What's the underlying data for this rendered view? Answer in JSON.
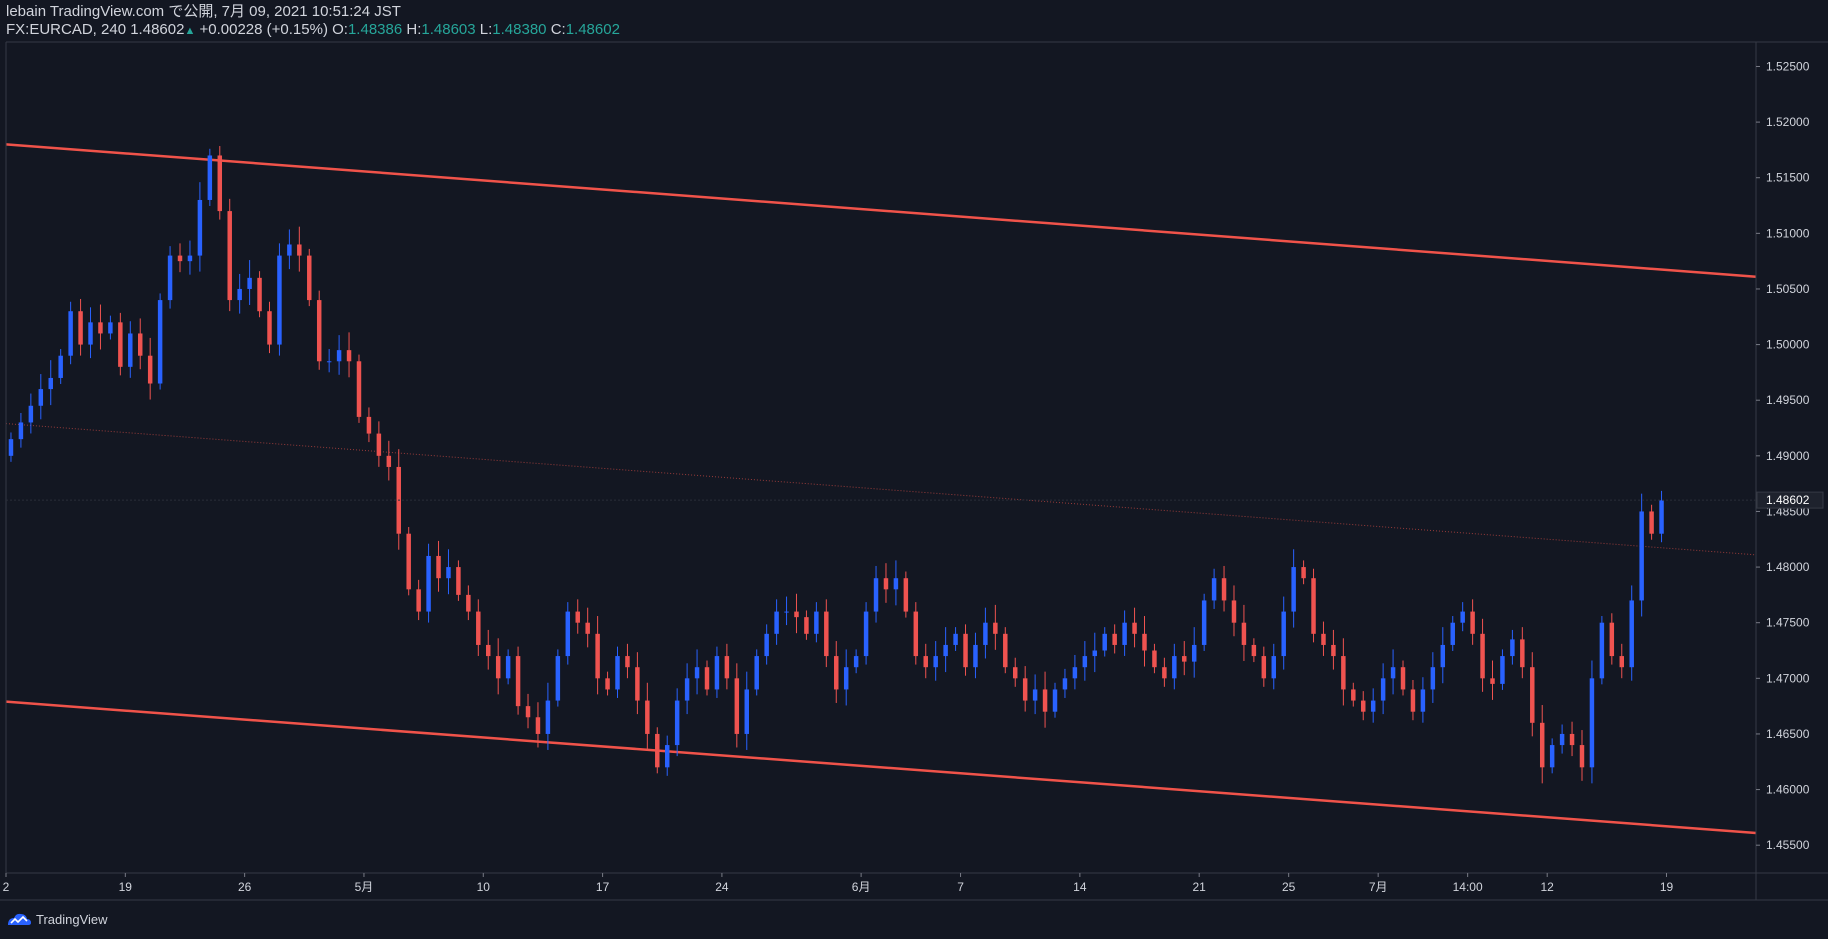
{
  "header": {
    "line1": "lebain TradingView.com で公開, 7月 09, 2021 10:51:24 JST",
    "symbol": "FX:EURCAD, 240",
    "last": "1.48602",
    "change": "+0.00228 (+0.15%)",
    "o_label": "O:",
    "o_val": "1.48386",
    "h_label": "H:",
    "h_val": "1.48603",
    "l_label": "L:",
    "l_val": "1.48380",
    "c_label": "C:",
    "c_val": "1.48602"
  },
  "footer": {
    "brand": "TradingView"
  },
  "colors": {
    "bg": "#131722",
    "up": "#2962ff",
    "down": "#ef5350",
    "channel": "#f0534a",
    "text": "#d1d4dc",
    "grid": "#363a45"
  },
  "chart_data": {
    "type": "candlestick",
    "symbol": "FX:EURCAD",
    "interval": "240",
    "ylim": [
      1.4525,
      1.5272
    ],
    "y_ticks": [
      1.455,
      1.46,
      1.465,
      1.47,
      1.475,
      1.48,
      1.485,
      1.49,
      1.495,
      1.5,
      1.505,
      1.51,
      1.515,
      1.52,
      1.525
    ],
    "y_tick_labels": [
      "1.45500",
      "1.46000",
      "1.46500",
      "1.47000",
      "1.47500",
      "1.48000",
      "1.48500",
      "1.49000",
      "1.49500",
      "1.50000",
      "1.50500",
      "1.51000",
      "1.51500",
      "1.52000",
      "1.52500"
    ],
    "last_price": 1.48602,
    "last_price_label": "1.48602",
    "x_range": [
      0,
      176
    ],
    "x_ticks": [
      {
        "label": "2",
        "x": 0
      },
      {
        "label": "19",
        "x": 12
      },
      {
        "label": "26",
        "x": 24
      },
      {
        "label": "5月",
        "x": 36
      },
      {
        "label": "10",
        "x": 48
      },
      {
        "label": "17",
        "x": 60
      },
      {
        "label": "24",
        "x": 72
      },
      {
        "label": "6月",
        "x": 86
      },
      {
        "label": "7",
        "x": 96
      },
      {
        "label": "14",
        "x": 108
      },
      {
        "label": "21",
        "x": 120
      },
      {
        "label": "25",
        "x": 129
      },
      {
        "label": "7月",
        "x": 138
      },
      {
        "label": "14:00",
        "x": 147
      },
      {
        "label": "12",
        "x": 155
      },
      {
        "label": "19",
        "x": 167
      }
    ],
    "channel_lines": [
      {
        "name": "upper",
        "x1": 0,
        "y1": 1.518,
        "x2": 176,
        "y2": 1.5061,
        "style": "solid"
      },
      {
        "name": "lower",
        "x1": 0,
        "y1": 1.4679,
        "x2": 176,
        "y2": 1.4561,
        "style": "solid"
      },
      {
        "name": "mid",
        "x1": 0,
        "y1": 1.4929,
        "x2": 176,
        "y2": 1.4811,
        "style": "dotted"
      }
    ],
    "close_series": [
      1.4915,
      1.493,
      1.4945,
      1.496,
      1.497,
      1.499,
      1.503,
      1.5,
      1.502,
      1.501,
      1.502,
      1.498,
      1.501,
      1.499,
      1.4965,
      1.504,
      1.508,
      1.5075,
      1.508,
      1.513,
      1.517,
      1.512,
      1.504,
      1.505,
      1.506,
      1.503,
      1.5,
      1.508,
      1.509,
      1.508,
      1.504,
      1.4985,
      1.4985,
      1.4995,
      1.4985,
      1.4935,
      1.492,
      1.49,
      1.489,
      1.483,
      1.478,
      1.476,
      1.481,
      1.479,
      1.48,
      1.4775,
      1.476,
      1.473,
      1.472,
      1.47,
      1.472,
      1.4675,
      1.4665,
      1.465,
      1.468,
      1.472,
      1.476,
      1.475,
      1.474,
      1.47,
      1.469,
      1.472,
      1.471,
      1.468,
      1.465,
      1.462,
      1.464,
      1.468,
      1.47,
      1.471,
      1.469,
      1.472,
      1.47,
      1.465,
      1.469,
      1.472,
      1.474,
      1.476,
      1.476,
      1.4755,
      1.474,
      1.476,
      1.472,
      1.469,
      1.471,
      1.472,
      1.476,
      1.479,
      1.478,
      1.479,
      1.476,
      1.472,
      1.471,
      1.472,
      1.473,
      1.474,
      1.471,
      1.473,
      1.475,
      1.474,
      1.471,
      1.47,
      1.468,
      1.469,
      1.467,
      1.469,
      1.47,
      1.471,
      1.472,
      1.4725,
      1.474,
      1.473,
      1.475,
      1.474,
      1.4725,
      1.471,
      1.47,
      1.472,
      1.4715,
      1.473,
      1.477,
      1.479,
      1.477,
      1.475,
      1.473,
      1.472,
      1.47,
      1.472,
      1.476,
      1.48,
      1.479,
      1.474,
      1.473,
      1.472,
      1.469,
      1.468,
      1.467,
      1.468,
      1.47,
      1.471,
      1.469,
      1.467,
      1.469,
      1.471,
      1.473,
      1.475,
      1.476,
      1.474,
      1.47,
      1.4695,
      1.472,
      1.4735,
      1.471,
      1.466,
      1.462,
      1.464,
      1.465,
      1.464,
      1.462,
      1.47,
      1.475,
      1.472,
      1.471,
      1.477,
      1.485,
      1.483,
      1.486
    ]
  }
}
